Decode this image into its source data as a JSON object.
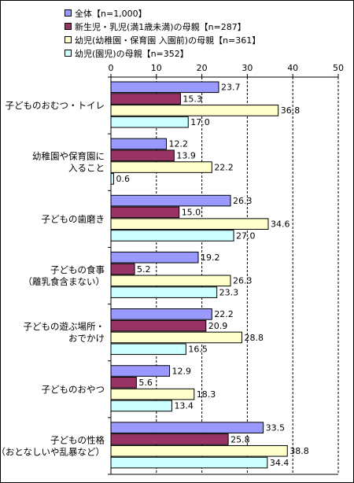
{
  "chart_data": {
    "type": "bar",
    "orientation": "horizontal",
    "xlim": [
      0,
      50
    ],
    "ticks": [
      "0",
      "10",
      "20",
      "30",
      "40",
      "50"
    ],
    "grid": "dashed vertical",
    "legend": "top",
    "categories": [
      [
        "子どものおむつ・トイレ"
      ],
      [
        "幼稚園や保育園に",
        "入ること"
      ],
      [
        "子どもの歯磨き"
      ],
      [
        "子どもの食事",
        "（離乳食含まない）"
      ],
      [
        "子どもの遊ぶ場所・",
        "おでかけ"
      ],
      [
        "子どものおやつ"
      ],
      [
        "子どもの性格",
        "（おとなしいや乱暴など）"
      ]
    ],
    "series": [
      {
        "name": "全体【n=1,000】",
        "color": "#9999ff",
        "values": [
          23.7,
          12.2,
          26.3,
          19.2,
          22.2,
          12.9,
          33.5
        ],
        "labels": [
          "23.7",
          "12.2",
          "26.3",
          "19.2",
          "22.2",
          "12.9",
          "33.5"
        ]
      },
      {
        "name": "新生児・乳児(満1歳未満)の母親【n=287】",
        "color": "#993366",
        "values": [
          15.3,
          13.9,
          15.0,
          5.2,
          20.9,
          5.6,
          25.8
        ],
        "labels": [
          "15.3",
          "13.9",
          "15.0",
          "5.2",
          "20.9",
          "5.6",
          "25.8"
        ]
      },
      {
        "name": "幼児(幼稚園・保育園 入園前)の母親【n=361】",
        "color": "#ffffcc",
        "values": [
          36.8,
          22.2,
          34.6,
          26.3,
          28.8,
          18.3,
          38.8
        ],
        "labels": [
          "36.8",
          "22.2",
          "34.6",
          "26.3",
          "28.8",
          "18.3",
          "38.8"
        ]
      },
      {
        "name": "幼児(園児)の母親【n=352】",
        "color": "#ccffff",
        "values": [
          17.0,
          0.6,
          27.0,
          23.3,
          16.5,
          13.4,
          34.4
        ],
        "labels": [
          "17.0",
          "0.6",
          "27.0",
          "23.3",
          "16.5",
          "13.4",
          "34.4"
        ]
      }
    ]
  }
}
